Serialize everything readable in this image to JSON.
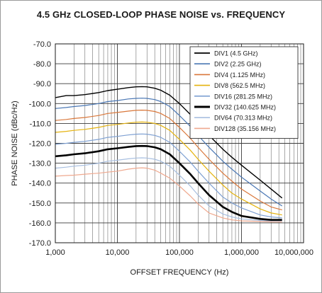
{
  "chart_data": {
    "type": "line",
    "title": "4.5 GHz CLOSED-LOOP PHASE NOISE vs. FREQUENCY",
    "xlabel": "OFFSET FREQUENCY (Hz)",
    "ylabel": "PHASE NOISE (dBc/Hz)",
    "x_scale": "log",
    "xlim": [
      1000,
      10000000
    ],
    "ylim": [
      -170,
      -70
    ],
    "x_ticks": [
      1000,
      10000,
      100000,
      1000000,
      10000000
    ],
    "x_tick_labels": [
      "1,000",
      "10,000",
      "100,000",
      "1,000,000",
      "10,000,000"
    ],
    "y_ticks": [
      -70,
      -80,
      -90,
      -100,
      -110,
      -120,
      -130,
      -140,
      -150,
      -160,
      -170
    ],
    "y_tick_labels": [
      "-70.0",
      "-80.0",
      "-90.0",
      "-100.0",
      "-110.0",
      "-120.0",
      "-130.0",
      "-140.0",
      "-150.0",
      "-160.0",
      "-170.0"
    ],
    "grid": true,
    "legend_position": "top-right",
    "x": [
      1000,
      1500,
      2000,
      3000,
      5000,
      7000,
      10000,
      15000,
      20000,
      25000,
      30000,
      40000,
      50000,
      70000,
      100000,
      150000,
      200000,
      300000,
      500000,
      700000,
      1000000,
      2000000,
      3000000,
      4500000
    ],
    "series": [
      {
        "name": "DIV1 (4.5 GHz)",
        "color": "#000000",
        "width": 1.4,
        "values": [
          -97,
          -96,
          -96,
          -95.5,
          -94.5,
          -93.5,
          -92.8,
          -92,
          -91.6,
          -91.5,
          -91.6,
          -92.3,
          -93.3,
          -95.8,
          -100,
          -105.5,
          -110,
          -116,
          -123,
          -127,
          -131,
          -138.5,
          -143,
          -147.5
        ]
      },
      {
        "name": "DIV2 (2.25 GHz)",
        "color": "#4a77b4",
        "width": 1.2,
        "values": [
          -102.5,
          -102,
          -101.5,
          -101,
          -100,
          -99,
          -98.5,
          -97.7,
          -97.4,
          -97.3,
          -97.4,
          -98,
          -99,
          -101.5,
          -106,
          -111.5,
          -116,
          -122,
          -129,
          -133,
          -137,
          -144,
          -148,
          -151.5
        ]
      },
      {
        "name": "DIV4 (1.125 MHz)",
        "color": "#d9773a",
        "width": 1.2,
        "values": [
          -108.5,
          -108,
          -107.5,
          -107,
          -106,
          -105,
          -104.5,
          -103.8,
          -103.4,
          -103.3,
          -103.4,
          -104,
          -105,
          -107.5,
          -112,
          -117.5,
          -122,
          -128,
          -135,
          -139,
          -143,
          -149,
          -152,
          -153.5
        ]
      },
      {
        "name": "DIV8 (562.5 MHz)",
        "color": "#e5b30e",
        "width": 1.2,
        "values": [
          -114.5,
          -114,
          -113.5,
          -113,
          -112,
          -111,
          -110.5,
          -109.8,
          -109.4,
          -109.3,
          -109.4,
          -110,
          -111,
          -113.5,
          -118,
          -123.5,
          -128,
          -134,
          -141,
          -145,
          -148,
          -153,
          -155,
          -156
        ]
      },
      {
        "name": "DIV16 (281.25 MHz)",
        "color": "#7ea0d2",
        "width": 1.2,
        "values": [
          -120.5,
          -120,
          -119.5,
          -119,
          -118,
          -117,
          -116.5,
          -115.8,
          -115.4,
          -115.3,
          -115.4,
          -116,
          -117,
          -119.5,
          -124,
          -129.5,
          -134,
          -140,
          -147,
          -150,
          -152.5,
          -156,
          -157,
          -157.5
        ]
      },
      {
        "name": "DIV32 (140.625 MHz)",
        "color": "#000000",
        "width": 2.6,
        "values": [
          -126.5,
          -126,
          -125.5,
          -125,
          -124,
          -123,
          -122.5,
          -121.8,
          -121.4,
          -121.3,
          -121.4,
          -122,
          -123,
          -125.5,
          -130,
          -135.5,
          -140,
          -146,
          -152,
          -154.5,
          -156.5,
          -158,
          -158.5,
          -158.5
        ]
      },
      {
        "name": "DIV64 (70.313 MHz)",
        "color": "#a8bfe0",
        "width": 1.2,
        "values": [
          -132.5,
          -132,
          -131.5,
          -131,
          -130,
          -129,
          -128.5,
          -127.8,
          -127.4,
          -127.3,
          -127.4,
          -128,
          -129,
          -131.5,
          -136,
          -141.5,
          -146,
          -151.5,
          -155.5,
          -157,
          -158,
          -158.8,
          -159,
          -159
        ]
      },
      {
        "name": "DIV128 (35.156 MHz)",
        "color": "#efa98f",
        "width": 1.2,
        "values": [
          -136.5,
          -136.2,
          -136,
          -135.5,
          -135,
          -134.5,
          -134,
          -133,
          -132.5,
          -132.3,
          -132.5,
          -133.5,
          -135,
          -137.5,
          -141.5,
          -146.5,
          -150.5,
          -155,
          -157.5,
          -158.5,
          -159,
          -159.3,
          -159.5,
          -159.5
        ]
      }
    ]
  }
}
